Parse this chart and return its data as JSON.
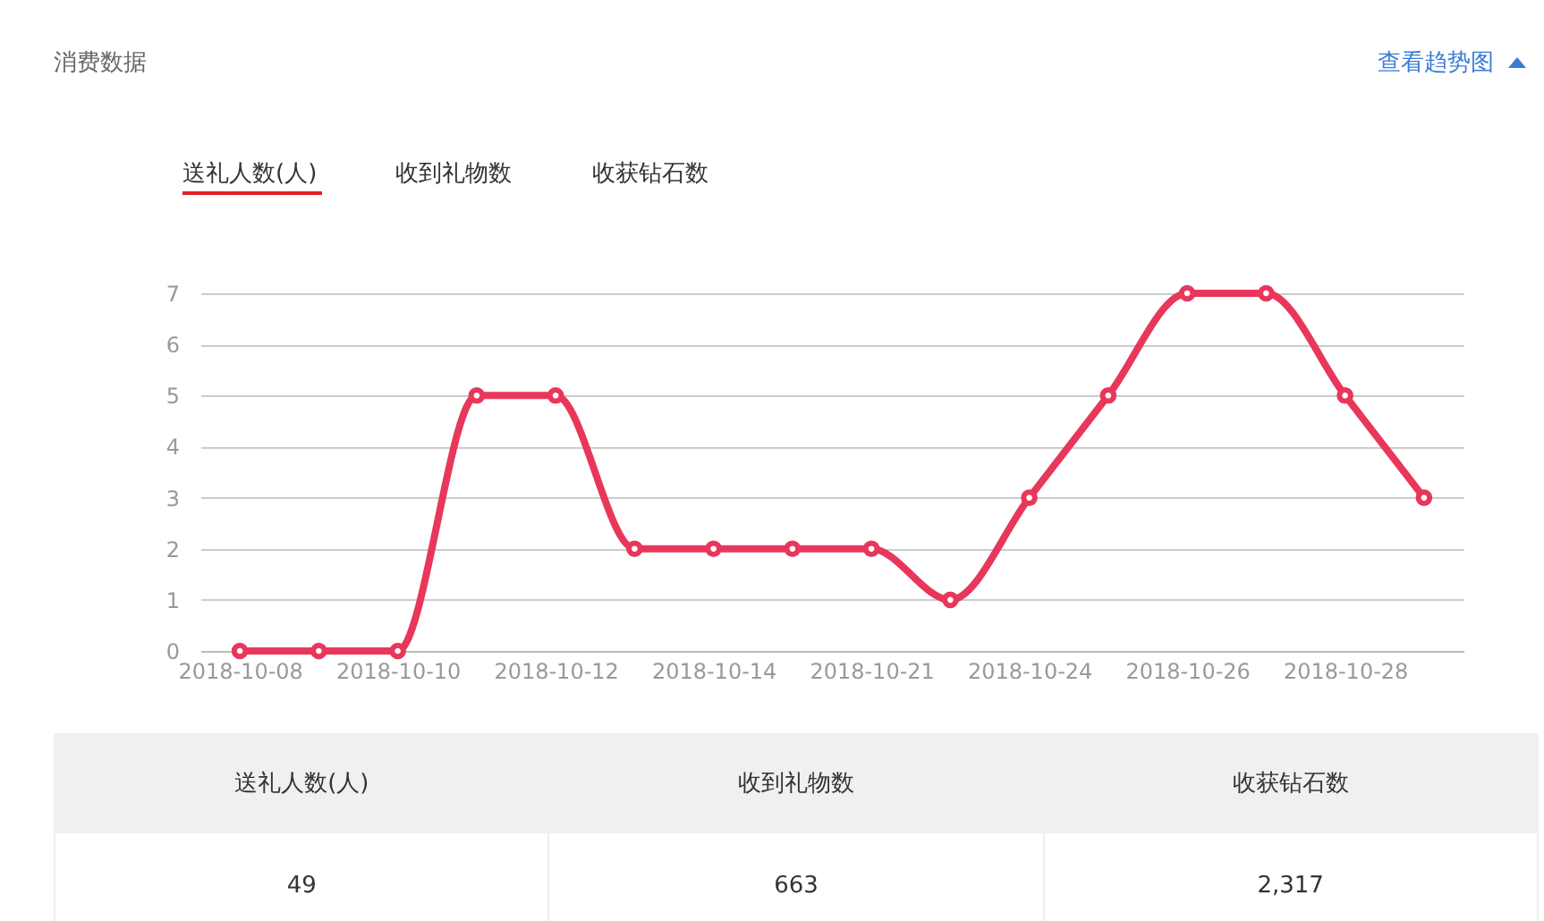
{
  "chart_data": {
    "type": "line",
    "title": "消费数据",
    "annotations": [
      "查看趋势图",
      "送礼人数(人)",
      "收到礼物数",
      "收获钻石数",
      "送礼人数(人)",
      "收到礼物数",
      "收获钻石数",
      "49",
      "663",
      "2,317"
    ],
    "categories": [
      "2018-10-08",
      null,
      "2018-10-10",
      null,
      "2018-10-12",
      null,
      "2018-10-14",
      null,
      "2018-10-21",
      null,
      "2018-10-24",
      null,
      "2018-10-26",
      null,
      "2018-10-28",
      null
    ],
    "values": [
      0,
      0,
      0,
      5,
      5,
      2,
      2,
      2,
      2,
      1,
      3,
      5,
      7,
      7,
      5,
      3
    ],
    "color": "#e8375a",
    "marker": "circle",
    "ylim": [
      0,
      7
    ],
    "yticks": [
      0,
      1,
      2,
      3,
      4,
      5,
      6,
      7
    ],
    "grid": "y"
  }
}
